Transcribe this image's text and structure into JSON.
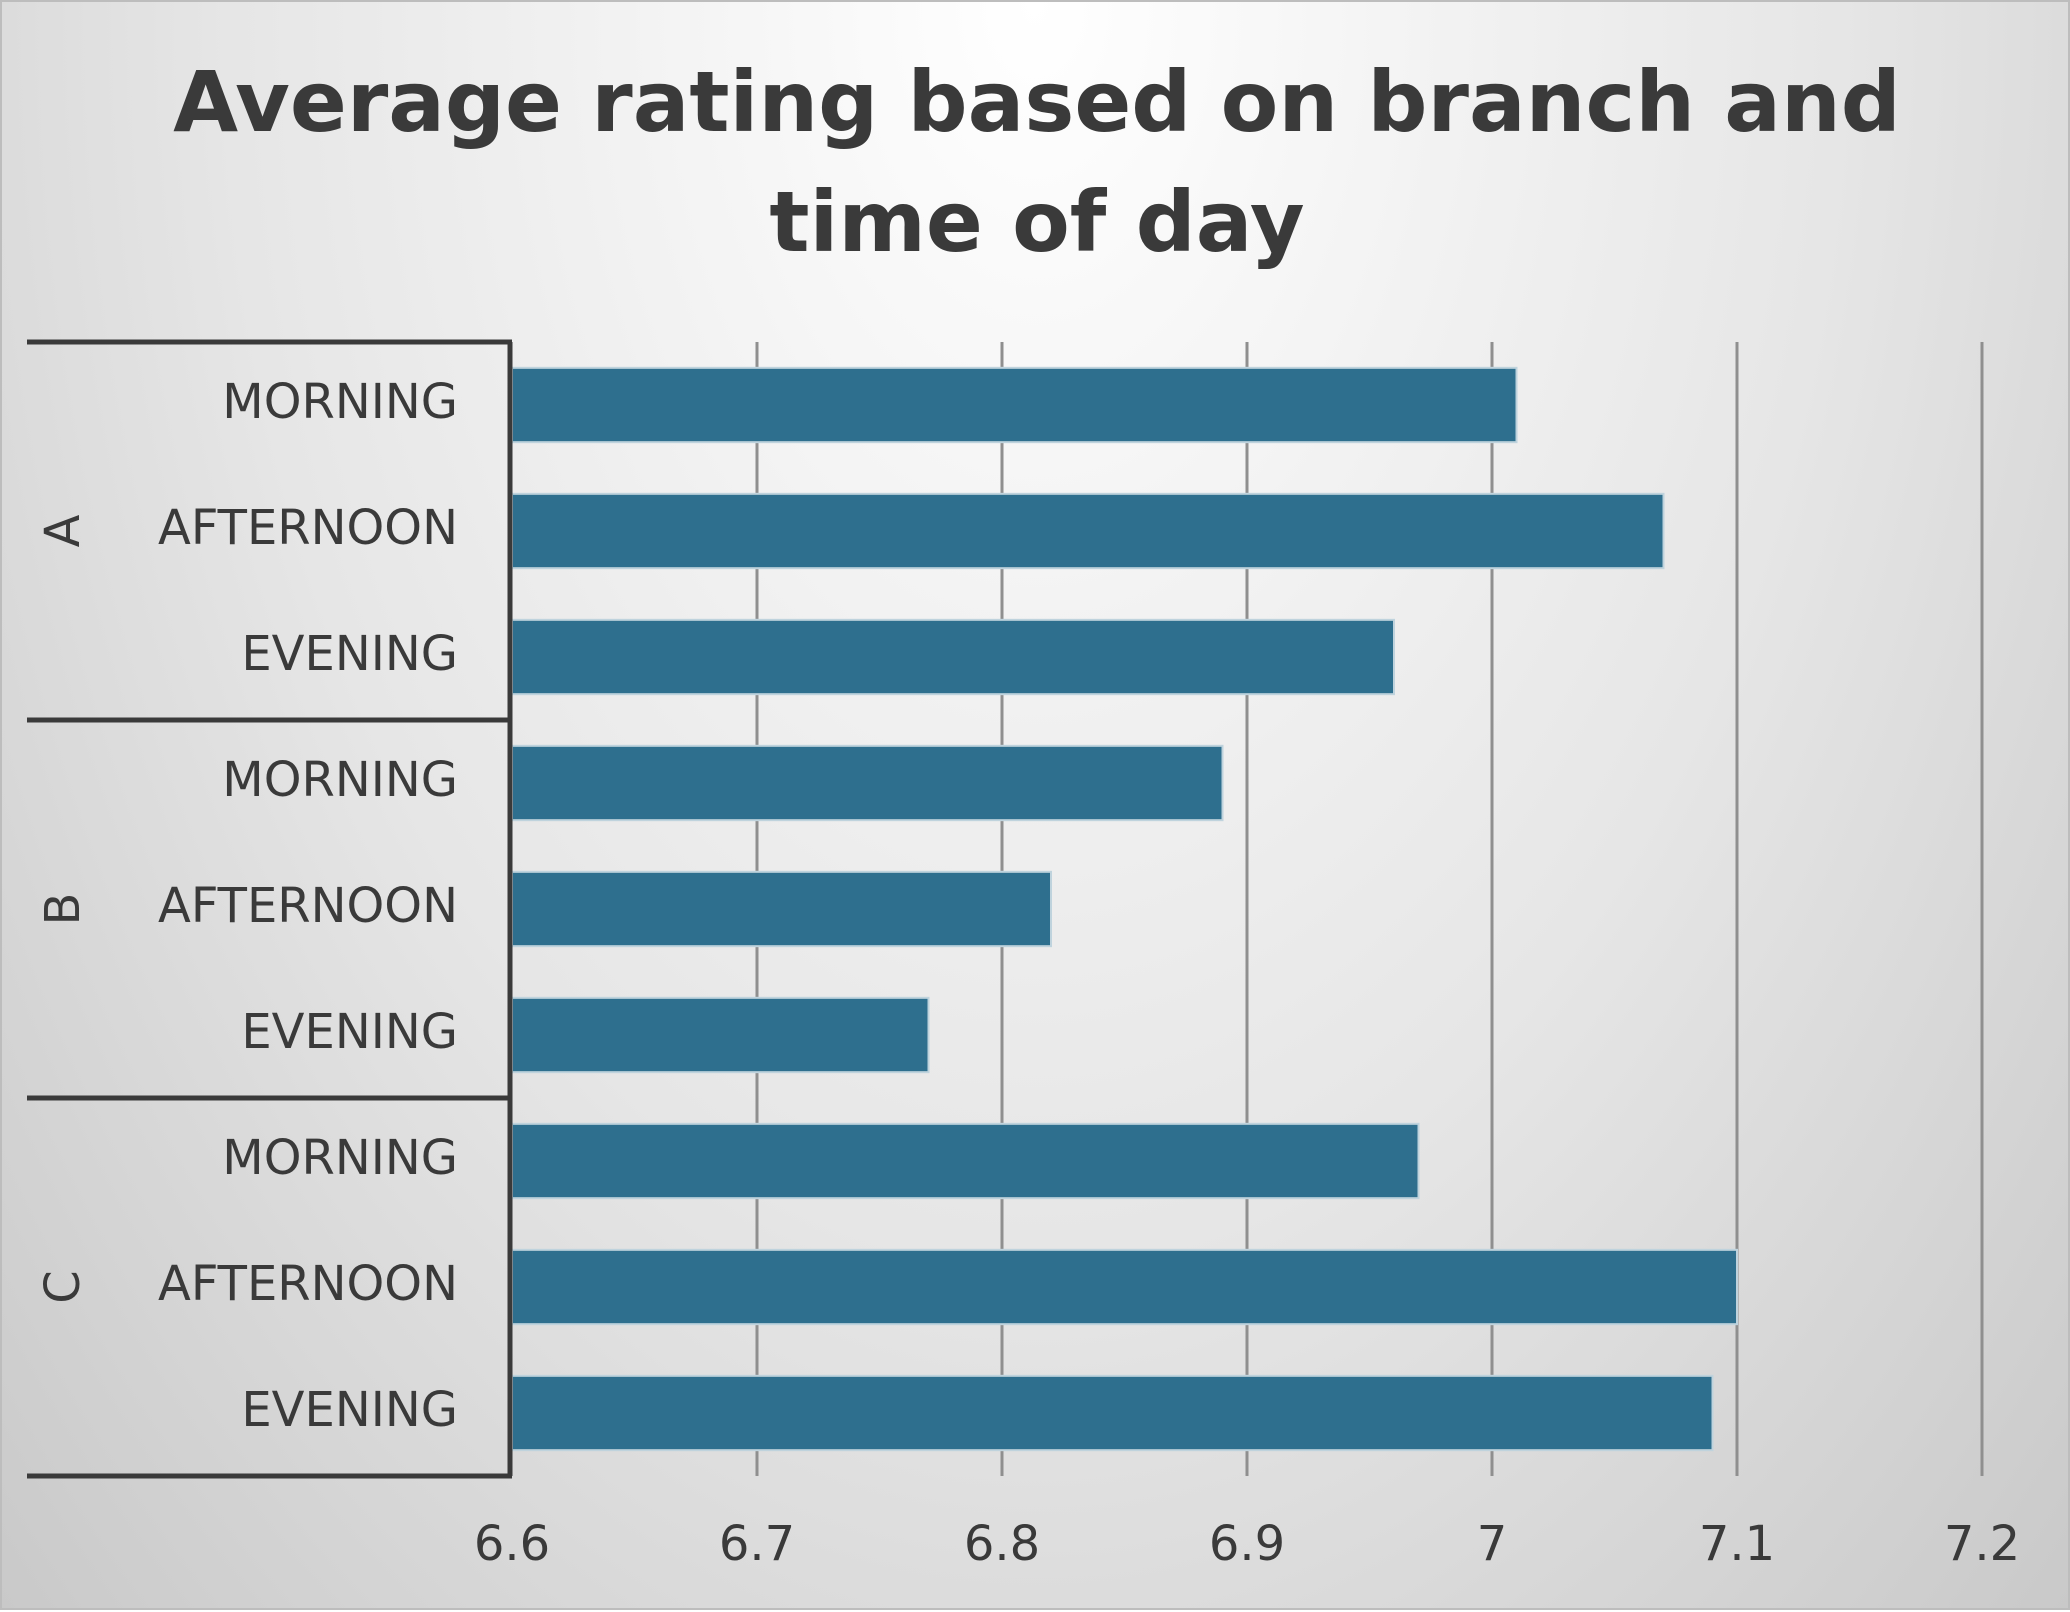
{
  "chart_data": {
    "type": "bar",
    "orientation": "horizontal",
    "title_lines": [
      "Average rating based on branch and",
      "time of day"
    ],
    "groups": [
      {
        "name": "A",
        "categories": [
          "MORNING",
          "AFTERNOON",
          "EVENING"
        ],
        "values": [
          7.01,
          7.07,
          6.96
        ]
      },
      {
        "name": "B",
        "categories": [
          "MORNING",
          "AFTERNOON",
          "EVENING"
        ],
        "values": [
          6.89,
          6.82,
          6.77
        ]
      },
      {
        "name": "C",
        "categories": [
          "MORNING",
          "AFTERNOON",
          "EVENING"
        ],
        "values": [
          6.97,
          7.1,
          7.09
        ]
      }
    ],
    "xlim": [
      6.6,
      7.2
    ],
    "xticks": [
      "6.6",
      "6.7",
      "6.8",
      "6.9",
      "7",
      "7.1",
      "7.2"
    ],
    "grid": true,
    "bar_color": "#2e6f8e",
    "text_color": "#3a3a3a",
    "grid_color": "#8f8f8f"
  }
}
